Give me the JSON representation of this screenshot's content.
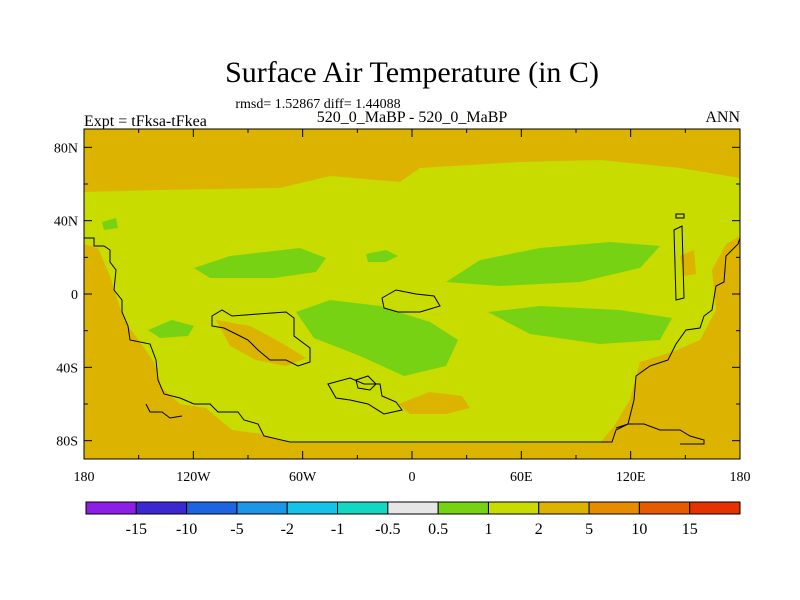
{
  "chart_data": {
    "type": "heatmap",
    "title": "Surface Air Temperature (in C)",
    "stats_text": "rmsd= 1.52867 diff= 1.44088",
    "left_label": "Expt = tFksa-tFkea",
    "center_label": "520_0_MaBP - 520_0_MaBP",
    "right_label": "ANN",
    "x_ticks": [
      "180",
      "120W",
      "60W",
      "0",
      "60E",
      "120E",
      "180"
    ],
    "x_tick_values": [
      -180,
      -120,
      -60,
      0,
      60,
      120,
      180
    ],
    "y_ticks": [
      "80N",
      "40N",
      "0",
      "40S",
      "80S"
    ],
    "y_tick_values": [
      80,
      40,
      0,
      -40,
      -80
    ],
    "xlim": [
      -180,
      180
    ],
    "ylim": [
      -90,
      90
    ],
    "colorbar": {
      "labels": [
        "-15",
        "-10",
        "-5",
        "-2",
        "-1",
        "-0.5",
        "0.5",
        "1",
        "2",
        "5",
        "10",
        "15"
      ],
      "colors": [
        "#8c1ee6",
        "#3c28d2",
        "#1e64e1",
        "#1e96e6",
        "#14c3e6",
        "#14d7c3",
        "#e6e6e6",
        "#78d214",
        "#c8dc00",
        "#dcb400",
        "#e68c00",
        "#e65a00",
        "#e63200"
      ]
    },
    "field_regions": {
      "background_level_color": "#dcb400",
      "mid_level_color": "#c8dc00",
      "high_level_color": "#78d214"
    }
  }
}
